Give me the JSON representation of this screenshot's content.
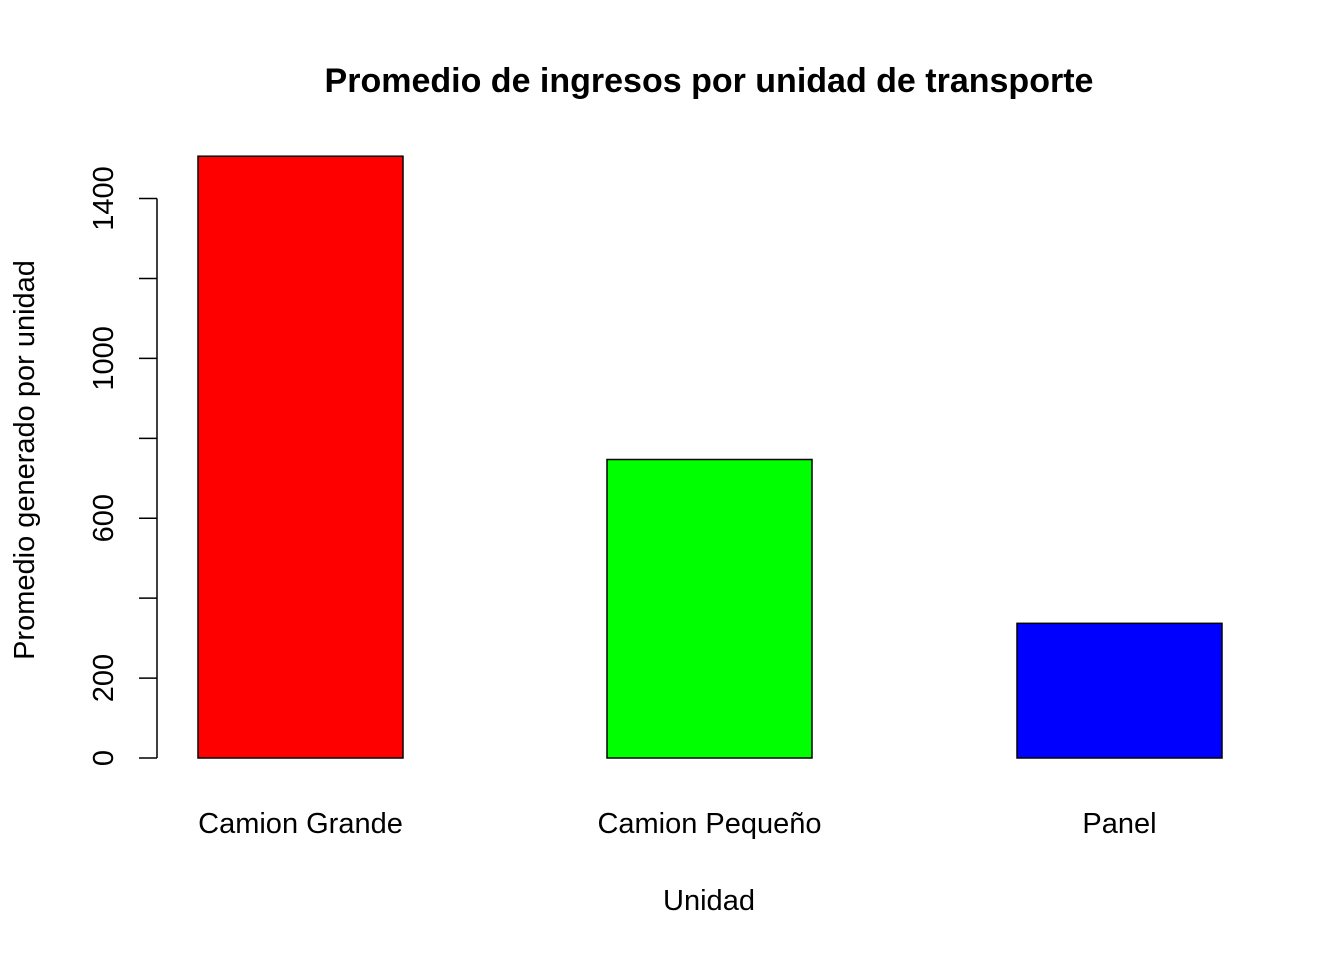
{
  "chart_data": {
    "type": "bar",
    "title": "Promedio de ingresos por unidad de transporte",
    "xlabel": "Unidad",
    "ylabel": "Promedio generado por unidad",
    "categories": [
      "Camion Grande",
      "Camion Pequeño",
      "Panel"
    ],
    "values": [
      1506,
      747,
      337
    ],
    "colors": [
      "#FF0000",
      "#00FF00",
      "#0000FF"
    ],
    "yticks": [
      0,
      200,
      600,
      1000,
      1400
    ],
    "yminor_ticks": [
      400,
      800,
      1200
    ],
    "ylim": [
      0,
      1506
    ],
    "grid": false,
    "legend": "none"
  }
}
